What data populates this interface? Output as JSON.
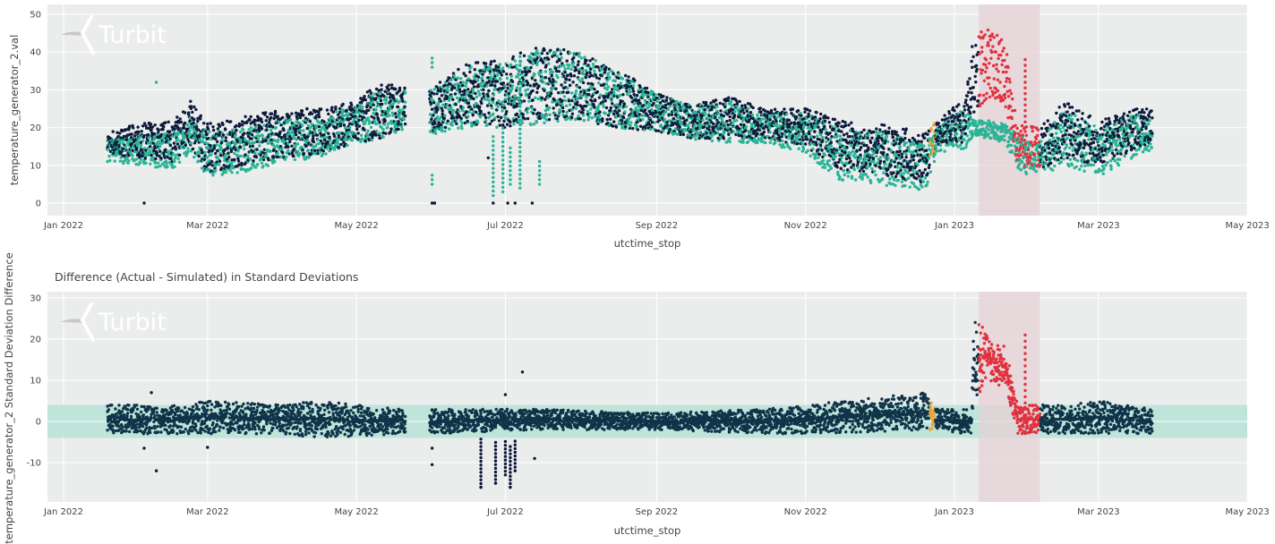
{
  "chart_data": [
    {
      "type": "scatter",
      "title": "",
      "xlabel": "utctime_stop",
      "ylabel": "temperature_generator_2.val",
      "xlim": [
        "2022-01-01",
        "2023-05-01"
      ],
      "ylim": [
        -3.3,
        52.6
      ],
      "yticks": [
        0,
        10,
        20,
        30,
        40,
        50
      ],
      "xticks": [
        [
          "2022-01-01",
          "Jan 2022"
        ],
        [
          "2022-03-01",
          "Mar 2022"
        ],
        [
          "2022-05-01",
          "May 2022"
        ],
        [
          "2022-07-01",
          "Jul 2022"
        ],
        [
          "2022-09-01",
          "Sep 2022"
        ],
        [
          "2022-11-01",
          "Nov 2022"
        ],
        [
          "2023-01-01",
          "Jan 2023"
        ],
        [
          "2023-03-01",
          "Mar 2023"
        ],
        [
          "2023-05-01",
          "May 2023"
        ]
      ],
      "grid": true,
      "legend": "none",
      "watermark": "Turbit",
      "envelope_columns": [
        "date",
        "actual_low",
        "actual_high",
        "simulated_low",
        "simulated_high"
      ],
      "envelope": [
        [
          "2022-01-19",
          13,
          19,
          11,
          17
        ],
        [
          "2022-02-01",
          12,
          21,
          10,
          18
        ],
        [
          "2022-02-15",
          11,
          22,
          9,
          19
        ],
        [
          "2022-02-22",
          15,
          27,
          13,
          23
        ],
        [
          "2022-03-01",
          8,
          21,
          7,
          19
        ],
        [
          "2022-03-15",
          10,
          23,
          8,
          20
        ],
        [
          "2022-04-01",
          12,
          25,
          11,
          22
        ],
        [
          "2022-04-15",
          13,
          25,
          12,
          23
        ],
        [
          "2022-05-01",
          16,
          27,
          15,
          26
        ],
        [
          "2022-05-10",
          17,
          32,
          17,
          30
        ],
        [
          "2022-05-20",
          20,
          31,
          19,
          30
        ],
        [
          "2022-06-01",
          19,
          31,
          18,
          30
        ],
        [
          "2022-06-15",
          21,
          37,
          20,
          36
        ],
        [
          "2022-07-01",
          20,
          38,
          20,
          37
        ],
        [
          "2022-07-15",
          22,
          42,
          21,
          41
        ],
        [
          "2022-08-01",
          22,
          40,
          22,
          40
        ],
        [
          "2022-08-15",
          20,
          36,
          20,
          35
        ],
        [
          "2022-09-01",
          19,
          29,
          19,
          29
        ],
        [
          "2022-09-15",
          17,
          26,
          17,
          26
        ],
        [
          "2022-10-01",
          17,
          28,
          16,
          27
        ],
        [
          "2022-10-15",
          17,
          25,
          16,
          24
        ],
        [
          "2022-11-01",
          15,
          25,
          13,
          24
        ],
        [
          "2022-11-15",
          9,
          22,
          6,
          20
        ],
        [
          "2022-12-01",
          8,
          21,
          5,
          19
        ],
        [
          "2022-12-20",
          4,
          19,
          3,
          16
        ],
        [
          "2022-12-25",
          15,
          22,
          13,
          20
        ],
        [
          "2023-01-05",
          16,
          28,
          14,
          25
        ],
        [
          "2023-01-09",
          24,
          45,
          18,
          22
        ],
        [
          "2023-01-15",
          28,
          47,
          17,
          22
        ],
        [
          "2023-01-22",
          25,
          42,
          16,
          21
        ],
        [
          "2023-01-27",
          10,
          22,
          8,
          18
        ],
        [
          "2023-02-05",
          9,
          20,
          7,
          16
        ],
        [
          "2023-02-15",
          12,
          27,
          10,
          25
        ],
        [
          "2023-03-01",
          10,
          22,
          7,
          20
        ],
        [
          "2023-03-15",
          14,
          25,
          12,
          24
        ],
        [
          "2023-03-23",
          16,
          25,
          14,
          22
        ]
      ],
      "gaps": [
        [
          "2022-05-21",
          "2022-05-31"
        ]
      ],
      "outliers": [
        {
          "date": "2022-02-03",
          "value": 0,
          "series": "actual"
        },
        {
          "date": "2022-02-08",
          "value": 32,
          "series": "simulated"
        },
        {
          "date": "2022-06-01",
          "value": 0,
          "series": "actual"
        },
        {
          "date": "2022-06-02",
          "value": 0,
          "series": "actual"
        },
        {
          "date": "2022-06-24",
          "value": 12,
          "series": "actual"
        },
        {
          "date": "2022-06-26",
          "value": 0,
          "series": "actual"
        },
        {
          "date": "2022-07-02",
          "value": 0,
          "series": "actual"
        },
        {
          "date": "2022-07-05",
          "value": 0,
          "series": "actual"
        },
        {
          "date": "2022-07-12",
          "value": 0,
          "series": "actual"
        }
      ],
      "simulated_strips": [
        [
          "2022-06-01",
          5,
          8
        ],
        [
          "2022-06-01",
          36,
          39
        ],
        [
          "2022-06-26",
          2,
          18
        ],
        [
          "2022-06-30",
          3,
          20
        ],
        [
          "2022-07-03",
          5,
          15
        ],
        [
          "2022-07-07",
          4,
          40
        ],
        [
          "2022-07-15",
          5,
          12
        ]
      ],
      "anomaly_dots": [
        [
          "2023-01-30",
          20,
          38
        ]
      ],
      "anomaly_period": [
        "2023-01-11",
        "2023-02-05"
      ],
      "warning_period": [
        "2022-12-22",
        "2022-12-24"
      ]
    },
    {
      "type": "scatter",
      "title": "Difference (Actual - Simulated) in Standard Deviations",
      "xlabel": "utctime_stop",
      "ylabel": "temperature_generator_2 Standard Deviation Difference",
      "xlim": [
        "2022-01-01",
        "2023-05-01"
      ],
      "ylim": [
        -19.6,
        31.5
      ],
      "yticks": [
        -10,
        0,
        10,
        20,
        30
      ],
      "xticks": [
        [
          "2022-01-01",
          "Jan 2022"
        ],
        [
          "2022-03-01",
          "Mar 2022"
        ],
        [
          "2022-05-01",
          "May 2022"
        ],
        [
          "2022-07-01",
          "Jul 2022"
        ],
        [
          "2022-09-01",
          "Sep 2022"
        ],
        [
          "2022-11-01",
          "Nov 2022"
        ],
        [
          "2023-01-01",
          "Jan 2023"
        ],
        [
          "2023-03-01",
          "Mar 2023"
        ],
        [
          "2023-05-01",
          "May 2023"
        ]
      ],
      "grid": true,
      "legend": "none",
      "watermark": "Turbit",
      "tolerance_band": [
        -4,
        4
      ],
      "envelope_columns": [
        "date",
        "diff_low",
        "diff_high"
      ],
      "envelope": [
        [
          "2022-01-19",
          -3,
          4
        ],
        [
          "2022-02-15",
          -3,
          4
        ],
        [
          "2022-03-01",
          -3,
          5
        ],
        [
          "2022-04-01",
          -3,
          4
        ],
        [
          "2022-04-15",
          -4,
          5
        ],
        [
          "2022-05-20",
          -3,
          3
        ],
        [
          "2022-06-01",
          -3,
          3
        ],
        [
          "2022-07-15",
          -2,
          3
        ],
        [
          "2022-09-01",
          -2,
          2
        ],
        [
          "2022-10-15",
          -3,
          3
        ],
        [
          "2022-11-15",
          -3,
          5
        ],
        [
          "2022-12-20",
          -2,
          7
        ],
        [
          "2022-12-25",
          -2,
          3
        ],
        [
          "2023-01-05",
          -3,
          3
        ],
        [
          "2023-01-08",
          -3,
          3
        ],
        [
          "2023-01-09",
          5,
          25
        ],
        [
          "2023-01-15",
          10,
          22
        ],
        [
          "2023-01-22",
          8,
          18
        ],
        [
          "2023-01-27",
          -3,
          4
        ],
        [
          "2023-02-15",
          -3,
          4
        ],
        [
          "2023-03-01",
          -3,
          5
        ],
        [
          "2023-03-23",
          -3,
          3
        ]
      ],
      "gaps": [
        [
          "2022-05-21",
          "2022-05-31"
        ]
      ],
      "outliers": [
        {
          "date": "2022-02-03",
          "value": -6.5
        },
        {
          "date": "2022-02-06",
          "value": 7
        },
        {
          "date": "2022-02-08",
          "value": -12
        },
        {
          "date": "2022-03-01",
          "value": -6.3
        },
        {
          "date": "2022-06-01",
          "value": -6.5
        },
        {
          "date": "2022-06-01",
          "value": -10.5
        },
        {
          "date": "2022-06-21",
          "value": -16
        },
        {
          "date": "2022-06-27",
          "value": -15
        },
        {
          "date": "2022-07-01",
          "value": 6.5
        },
        {
          "date": "2022-07-03",
          "value": -16
        },
        {
          "date": "2022-07-08",
          "value": 12
        },
        {
          "date": "2022-07-13",
          "value": -9
        }
      ],
      "negative_strips": [
        [
          "2022-06-21",
          -16,
          -4
        ],
        [
          "2022-06-27",
          -15,
          -5
        ],
        [
          "2022-07-01",
          -13,
          -4
        ],
        [
          "2022-07-03",
          -16,
          -6
        ],
        [
          "2022-07-05",
          -12,
          -4
        ]
      ],
      "anomaly_dots": [
        [
          "2023-01-30",
          0,
          22
        ]
      ],
      "anomaly_period": [
        "2023-01-11",
        "2023-02-05"
      ],
      "warning_period": [
        "2022-12-22",
        "2022-12-24"
      ]
    }
  ],
  "colors": {
    "plot_bg": "#ebecec",
    "actual": "#0e1a3c",
    "simulated": "#2ab495",
    "difference": "#0f3449",
    "anomaly": "#e0323f",
    "warning": "#e8a540",
    "anomaly_shade": "#e6d2d5",
    "band": "#bfe4da"
  }
}
